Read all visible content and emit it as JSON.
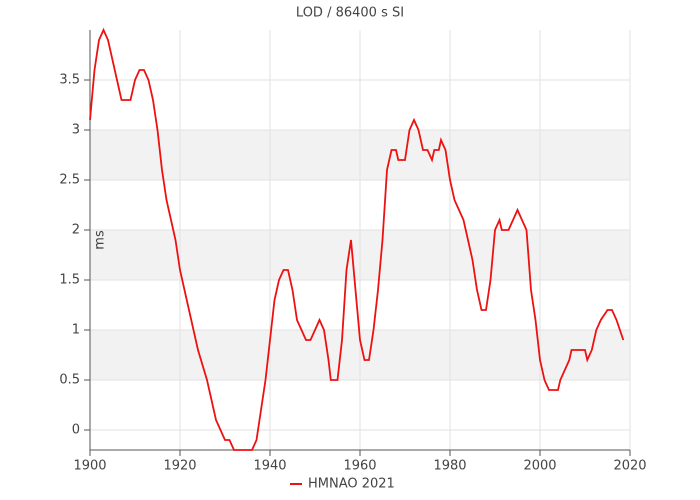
{
  "chart_data": {
    "type": "line",
    "title": "LOD / 86400 s SI",
    "y_label": "ms",
    "x": [
      1900,
      1901,
      1902,
      1903,
      1904,
      1905,
      1906,
      1907,
      1909,
      1910,
      1911,
      1912,
      1913,
      1914,
      1915,
      1916,
      1917,
      1918,
      1919,
      1920,
      1921,
      1922,
      1923,
      1924,
      1925,
      1926,
      1927,
      1928,
      1929,
      1930,
      1931,
      1932,
      1936,
      1937,
      1938,
      1939,
      1940,
      1941,
      1942,
      1943,
      1944,
      1945,
      1946,
      1947,
      1948,
      1949,
      1950,
      1951,
      1952,
      1953,
      1953.5,
      1955,
      1956,
      1957,
      1958,
      1959,
      1960,
      1961,
      1962,
      1963,
      1964,
      1965,
      1966,
      1967,
      1968,
      1968.5,
      1970,
      1971,
      1972,
      1973,
      1974,
      1975,
      1976,
      1976.5,
      1977.5,
      1978,
      1979,
      1980,
      1981,
      1982,
      1983,
      1984,
      1985,
      1986,
      1987,
      1988,
      1989,
      1990,
      1991,
      1991.5,
      1993,
      1994,
      1995,
      1996,
      1997,
      1998,
      1999,
      2000,
      2001,
      2002,
      2004,
      2004.5,
      2005.5,
      2006.5,
      2007,
      2010,
      2010.5,
      2011.5,
      2012.5,
      2013.5,
      2015,
      2016,
      2017,
      2018.5
    ],
    "series": [
      {
        "name": "HMNAO 2021",
        "color": "#ee1111",
        "values": [
          3.1,
          3.6,
          3.9,
          4.0,
          3.9,
          3.7,
          3.5,
          3.3,
          3.3,
          3.5,
          3.6,
          3.6,
          3.5,
          3.3,
          3.0,
          2.6,
          2.3,
          2.1,
          1.9,
          1.6,
          1.4,
          1.2,
          1.0,
          0.8,
          0.65,
          0.5,
          0.3,
          0.1,
          0.0,
          -0.1,
          -0.1,
          -0.2,
          -0.2,
          -0.1,
          0.2,
          0.5,
          0.9,
          1.3,
          1.5,
          1.6,
          1.6,
          1.4,
          1.1,
          1.0,
          0.9,
          0.9,
          1.0,
          1.1,
          1.0,
          0.7,
          0.5,
          0.5,
          0.9,
          1.6,
          1.9,
          1.4,
          0.9,
          0.7,
          0.7,
          1.0,
          1.4,
          1.9,
          2.6,
          2.8,
          2.8,
          2.7,
          2.7,
          3.0,
          3.1,
          3.0,
          2.8,
          2.8,
          2.7,
          2.8,
          2.8,
          2.9,
          2.8,
          2.5,
          2.3,
          2.2,
          2.1,
          1.9,
          1.7,
          1.4,
          1.2,
          1.2,
          1.5,
          2.0,
          2.1,
          2.0,
          2.0,
          2.1,
          2.2,
          2.1,
          2.0,
          1.4,
          1.1,
          0.7,
          0.5,
          0.4,
          0.4,
          0.5,
          0.6,
          0.7,
          0.8,
          0.8,
          0.7,
          0.8,
          1.0,
          1.1,
          1.2,
          1.2,
          1.1,
          0.9
        ]
      }
    ],
    "xlim": [
      1900,
      2020
    ],
    "xticks": [
      1900,
      1920,
      1940,
      1960,
      1980,
      2000,
      2020
    ],
    "ylim": [
      -0.2,
      4.0
    ],
    "yticks": [
      0,
      0.5,
      1,
      1.5,
      2,
      2.5,
      3,
      3.5
    ],
    "grid": true,
    "legend": "bottom"
  }
}
